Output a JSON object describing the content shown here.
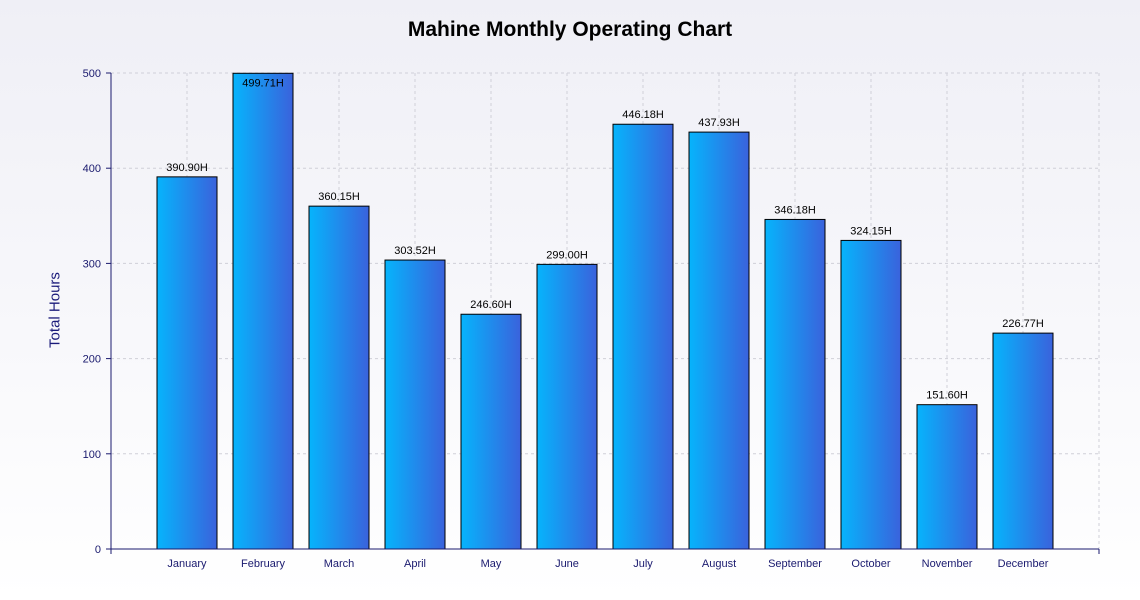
{
  "chart_data": {
    "type": "bar",
    "title": "Mahine Monthly Operating Chart",
    "xlabel": "",
    "ylabel": "Total Hours",
    "ylim": [
      0,
      500
    ],
    "yticks": [
      0,
      100,
      200,
      300,
      400,
      500
    ],
    "grid": true,
    "categories": [
      "January",
      "February",
      "March",
      "April",
      "May",
      "June",
      "July",
      "August",
      "September",
      "October",
      "November",
      "December"
    ],
    "values": [
      390.9,
      499.71,
      360.15,
      303.52,
      246.6,
      299.0,
      446.18,
      437.93,
      346.18,
      324.15,
      151.6,
      226.77
    ],
    "data_labels": [
      "390.90H",
      "499.71H",
      "360.15H",
      "303.52H",
      "246.60H",
      "299.00H",
      "446.18H",
      "437.93H",
      "346.18H",
      "324.15H",
      "151.60H",
      "226.77H"
    ],
    "colors": {
      "bar_gradient_start": "#06b4fc",
      "bar_gradient_end": "#3a62dc",
      "bar_outline": "#000000",
      "axis": "#1a1a6e",
      "grid": "#d0d0d8"
    }
  }
}
